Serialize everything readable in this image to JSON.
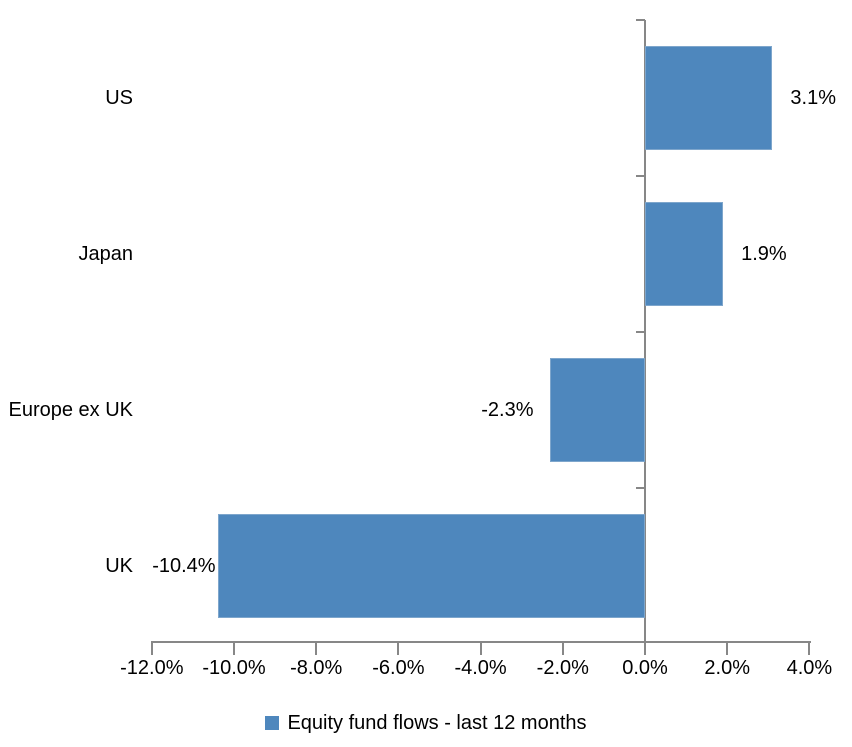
{
  "chart_data": {
    "type": "bar",
    "orientation": "horizontal",
    "title": "",
    "categories": [
      "US",
      "Japan",
      "Europe ex UK",
      "UK"
    ],
    "values": [
      3.1,
      1.9,
      -2.3,
      -10.4
    ],
    "data_labels": [
      "3.1%",
      "1.9%",
      "-2.3%",
      "-10.4%"
    ],
    "series": [
      {
        "name": "Equity fund flows - last 12 months",
        "values": [
          3.1,
          1.9,
          -2.3,
          -10.4
        ]
      }
    ],
    "series_name": "Equity fund flows - last 12 months",
    "xlim": [
      -12,
      4
    ],
    "x_ticks": [
      -12,
      -10,
      -8,
      -6,
      -4,
      -2,
      0,
      2,
      4
    ],
    "x_tick_labels": [
      "-12.0%",
      "-10.0%",
      "-8.0%",
      "-6.0%",
      "-4.0%",
      "-2.0%",
      "0.0%",
      "2.0%",
      "4.0%"
    ],
    "xlabel": "",
    "ylabel": "",
    "grid": false,
    "legend_position": "bottom"
  },
  "colors": {
    "bar_fill": "#4E87BD",
    "bar_border": "#7EA6CC",
    "axis": "#878787",
    "text": "#000000",
    "background": "#FFFFFF"
  }
}
